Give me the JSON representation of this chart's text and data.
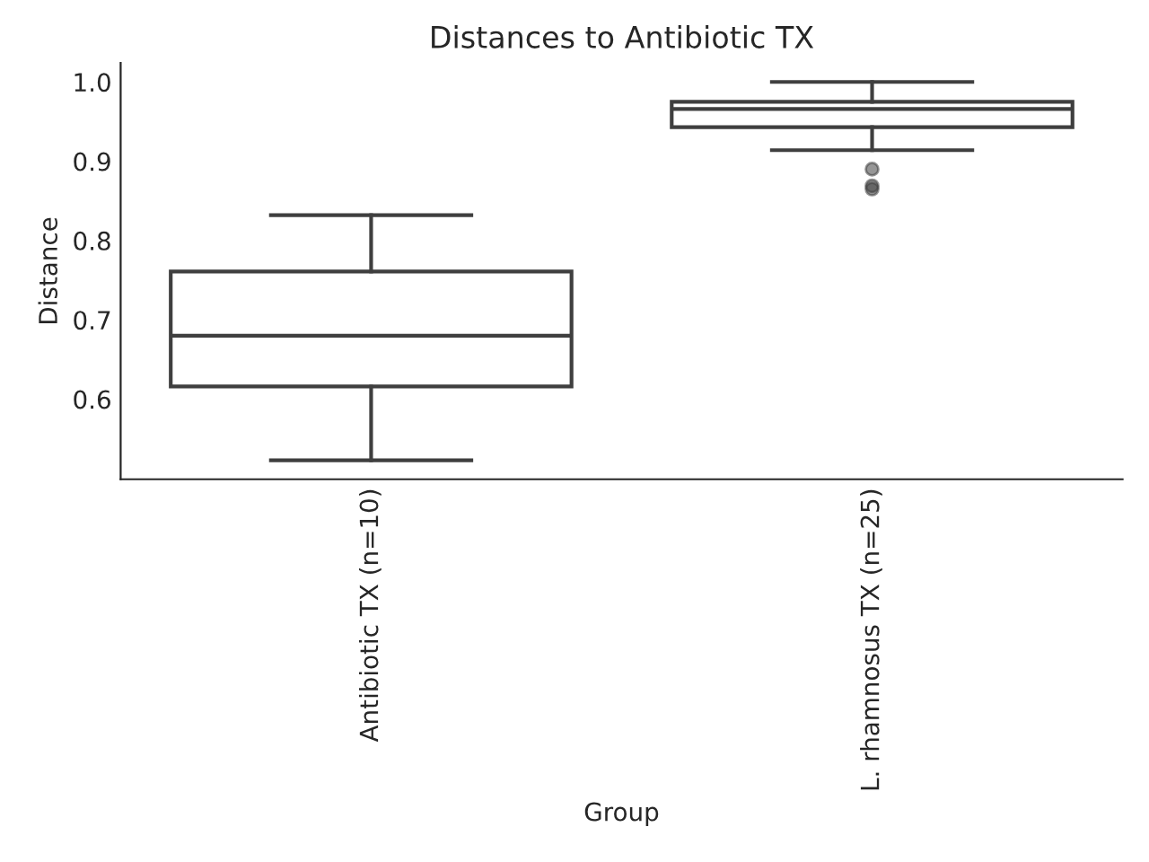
{
  "chart_data": {
    "type": "box",
    "title": "Distances to Antibiotic TX",
    "xlabel": "Group",
    "ylabel": "Distance",
    "categories": [
      "Antibiotic TX (n=10)",
      "L. rhamnosus TX (n=25)"
    ],
    "boxes": [
      {
        "low": 0.523,
        "q1": 0.616,
        "median": 0.68,
        "q3": 0.761,
        "high": 0.832
      },
      {
        "low": 0.914,
        "q1": 0.943,
        "median": 0.966,
        "q3": 0.975,
        "high": 1.0,
        "outliers": [
          0.89,
          0.869,
          0.865
        ]
      }
    ],
    "color": "#3f3f3f",
    "ylim": [
      0.499,
      1.024
    ],
    "yticks": [
      0.6,
      0.7,
      0.8,
      0.9,
      {
        "value": 1.0,
        "label": "1.0"
      }
    ],
    "grid": false,
    "legend": false
  }
}
